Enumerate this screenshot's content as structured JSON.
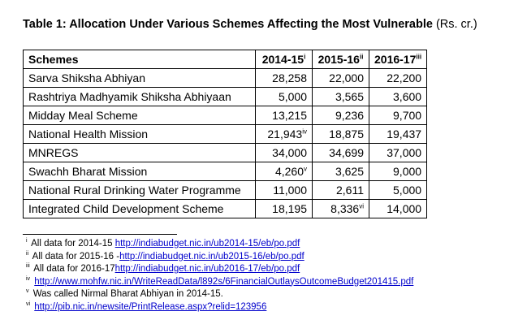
{
  "title": {
    "bold": "Table 1: Allocation Under Various Schemes Affecting the Most Vulnerable",
    "unit": " (Rs. cr.)"
  },
  "table": {
    "headers": [
      {
        "label": "Schemes",
        "sup": ""
      },
      {
        "label": "2014-15",
        "sup": "i"
      },
      {
        "label": "2015-16",
        "sup": "ii"
      },
      {
        "label": "2016-17",
        "sup": "iii"
      }
    ],
    "rows": [
      {
        "scheme": "Sarva Shiksha Abhiyan",
        "v1": "28,258",
        "s1": "",
        "v2": "22,000",
        "s2": "",
        "v3": "22,200"
      },
      {
        "scheme": "Rashtriya Madhyamik Shiksha Abhiyaan",
        "v1": "5,000",
        "s1": "",
        "v2": "3,565",
        "s2": "",
        "v3": "3,600"
      },
      {
        "scheme": "Midday Meal Scheme",
        "v1": "13,215",
        "s1": "",
        "v2": "9,236",
        "s2": "",
        "v3": "9,700"
      },
      {
        "scheme": "National Health Mission",
        "v1": "21,943",
        "s1": "iv",
        "v2": "18,875",
        "s2": "",
        "v3": "19,437"
      },
      {
        "scheme": "MNREGS",
        "v1": "34,000",
        "s1": "",
        "v2": "34,699",
        "s2": "",
        "v3": "37,000"
      },
      {
        "scheme": "Swachh Bharat Mission",
        "v1": "4,260",
        "s1": "v",
        "v2": "3,625",
        "s2": "",
        "v3": "9,000"
      },
      {
        "scheme": "National Rural Drinking Water Programme",
        "v1": "11,000",
        "s1": "",
        "v2": "2,611",
        "s2": "",
        "v3": "5,000"
      },
      {
        "scheme": "Integrated Child Development Scheme",
        "v1": "18,195",
        "s1": "",
        "v2": "8,336",
        "s2": "vi",
        "v3": "14,000"
      }
    ]
  },
  "footnotes": [
    {
      "mark": "i",
      "text": " All data for 2014-15 ",
      "link": "http://indiabudget.nic.in/ub2014-15/eb/po.pdf"
    },
    {
      "mark": "ii",
      "text": " All data for 2015-16 -",
      "link": "http://indiabudget.nic.in/ub2015-16/eb/po.pdf"
    },
    {
      "mark": "iii",
      "text": " All data for 2016-17",
      "link": "http://indiabudget.nic.in/ub2016-17/eb/po.pdf"
    },
    {
      "mark": "iv",
      "text": " ",
      "link": "http://www.mohfw.nic.in/WriteReadData/l892s/6FinancialOutlaysOutcomeBudget201415.pdf"
    },
    {
      "mark": "v",
      "text": " Was called Nirmal Bharat Abhiyan in 2014-15.",
      "link": ""
    },
    {
      "mark": "vi",
      "text": " ",
      "link": "http://pib.nic.in/newsite/PrintRelease.aspx?relid=123956"
    }
  ],
  "colors": {
    "link": "#0000cc",
    "text": "#000000",
    "border": "#000000"
  }
}
